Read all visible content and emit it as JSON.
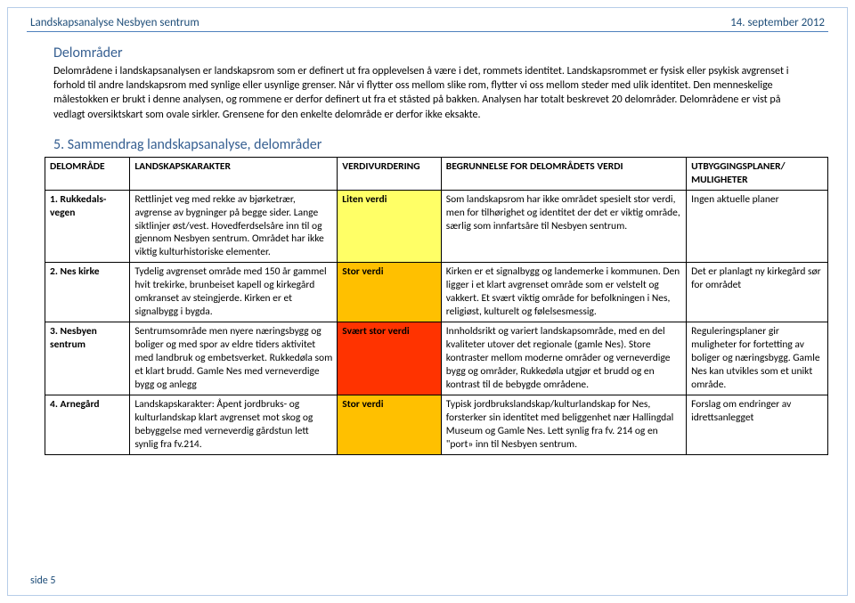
{
  "header": {
    "left": "Landskapsanalyse Nesbyen sentrum",
    "right": "14. september 2012"
  },
  "section1": {
    "title": "Delområder",
    "text": "Delområdene i landskapsanalysen er landskapsrom som er definert ut fra opplevelsen å være i det, rommets identitet. Landskapsrommet er fysisk eller psykisk avgrenset i forhold til andre landskapsrom med synlige eller usynlige grenser. Når vi flytter oss mellom slike rom, flytter vi oss mellom steder med ulik identitet. Den menneskelige målestokken er brukt i denne analysen, og rommene er derfor definert ut fra et ståsted på bakken. Analysen har totalt beskrevet 20 delområder. Delområdene er vist på vedlagt oversiktskart som ovale sirkler. Grensene for den enkelte delområde er derfor ikke eksakte."
  },
  "section2": {
    "title": "5.  Sammendrag landskapsanalyse, delområder"
  },
  "table": {
    "headers": {
      "c0": "DELOMRÅDE",
      "c1": "LANDSKAPSKARAKTER",
      "c2": "VERDIVURDERING",
      "c3": "BEGRUNNELSE FOR DELOMRÅDETS VERDI",
      "c4": "UTBYGGINGSPLANER/ MULIGHETER"
    },
    "rows": [
      {
        "num": "1.",
        "name": "Rukkedals-vegen",
        "karakter": "Rettlinjet veg med rekke av bjørketrær, avgrense av bygninger på begge sider. Lange siktlinjer øst/vest. Hovedferdselsåre inn til og gjennom Nesbyen sentrum. Området har ikke viktig kulturhistoriske elementer.",
        "verdi": "Liten verdi",
        "verdi_bg": "#ffff66",
        "begrunnelse": "Som landskapsrom har ikke området spesielt stor verdi, men for tilhørighet og identitet der det er viktig område, særlig som innfartsåre til Nesbyen sentrum.",
        "utbygging": "Ingen aktuelle planer"
      },
      {
        "num": "2.",
        "name": "Nes kirke",
        "karakter": "Tydelig avgrenset område med 150 år gammel hvit trekirke, brunbeiset kapell og kirkegård omkranset av steingjerde. Kirken er et signalbygg i bygda.",
        "verdi": "Stor verdi",
        "verdi_bg": "#ffc000",
        "begrunnelse": "Kirken er et signalbygg og landemerke i kommunen. Den ligger i et klart avgrenset område som er velstelt og vakkert. Et svært viktig område for befolkningen i Nes, religiøst, kulturelt og følelsesmessig.",
        "utbygging": "Det er planlagt ny kirkegård sør for området"
      },
      {
        "num": "3.",
        "name": "Nesbyen sentrum",
        "karakter": "Sentrumsområde men nyere næringsbygg og boliger og med spor av eldre tiders aktivitet med landbruk og embetsverket. Rukkedøla som et klart brudd. Gamle Nes med verneverdige bygg og anlegg",
        "verdi": "Svært stor verdi",
        "verdi_bg": "#ff3300",
        "begrunnelse": "Innholdsrikt og variert landskapsområde, med en del kvaliteter utover det regionale (gamle Nes). Store kontraster mellom moderne områder og verneverdige bygg og områder, Rukkedøla utgjør et brudd og en kontrast til de bebygde områdene.",
        "utbygging": "Reguleringsplaner gir muligheter for fortetting av boliger og næringsbygg. Gamle Nes kan utvikles som et unikt område."
      },
      {
        "num": "4.",
        "name": "Arnegård",
        "karakter": "Landskapskarakter: Åpent jordbruks- og kulturlandskap klart avgrenset mot skog og bebyggelse med verneverdig gårdstun lett synlig fra fv.214.",
        "verdi": "Stor verdi",
        "verdi_bg": "#ffc000",
        "begrunnelse": "Typisk jordbrukslandskap/kulturlandskap for Nes, forsterker sin identitet med beliggenhet nær Hallingdal Museum og Gamle Nes. Lett synlig fra fv. 214 og en \"port» inn til Nesbyen sentrum.",
        "utbygging": "Forslag om endringer av idrettsanlegget"
      }
    ]
  },
  "footer": "side 5"
}
